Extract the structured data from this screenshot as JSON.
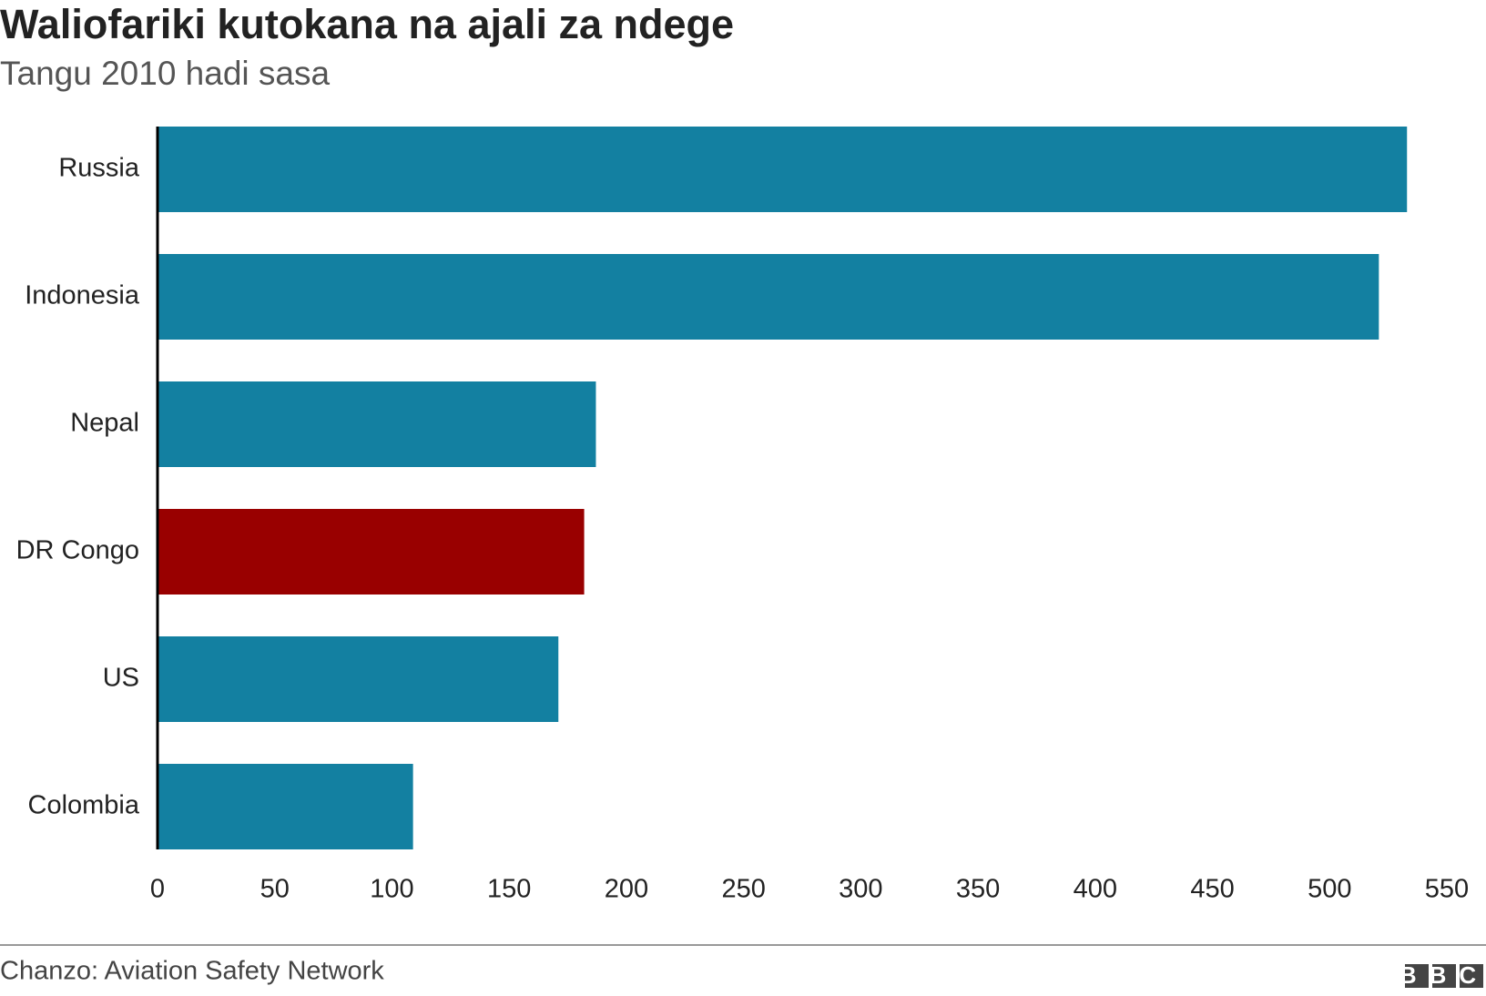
{
  "chart_data": {
    "type": "barh",
    "title": "Waliofariki kutokana na ajali za ndege",
    "subtitle": "Tangu 2010 hadi sasa",
    "categories": [
      "Russia",
      "Indonesia",
      "Nepal",
      "DR Congo",
      "US",
      "Colombia"
    ],
    "values": [
      533,
      521,
      187,
      182,
      171,
      109
    ],
    "colors": [
      "#1380a1",
      "#1380a1",
      "#1380a1",
      "#990000",
      "#1380a1",
      "#1380a1"
    ],
    "xlim": [
      0,
      550
    ],
    "xticks": [
      0,
      50,
      100,
      150,
      200,
      250,
      300,
      350,
      400,
      450,
      500,
      550
    ],
    "grid": false,
    "source": "Chanzo: Aviation Safety Network",
    "logo": "BBC"
  }
}
